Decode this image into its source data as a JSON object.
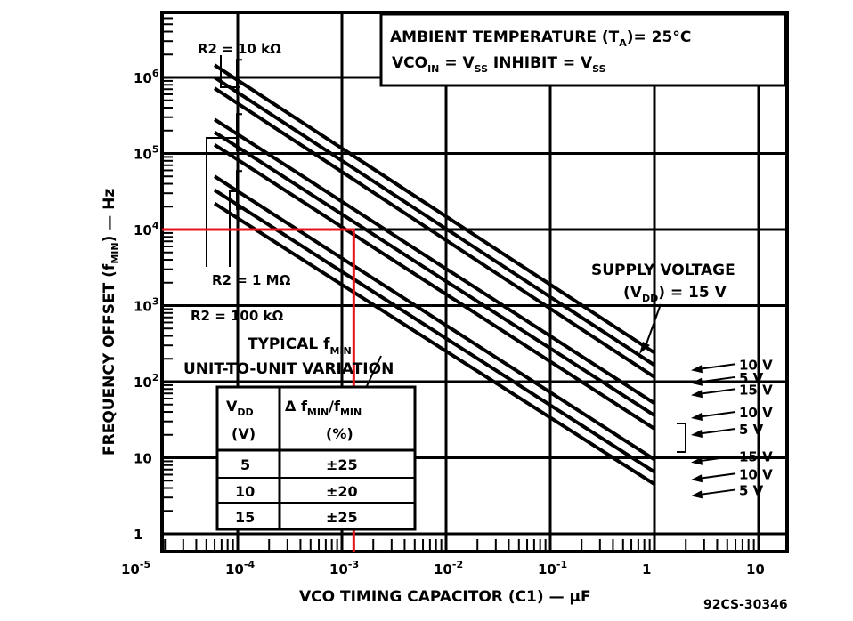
{
  "chart_data": {
    "type": "line",
    "xlabel": "VCO TIMING CAPACITOR (C1) — μF",
    "ylabel": "FREQUENCY OFFSET (f",
    "ylabel_sub": "MIN",
    "ylabel_tail": ") — Hz",
    "xscale": "log",
    "yscale": "log",
    "xlim": [
      1e-05,
      10
    ],
    "ylim": [
      0.5,
      10000000
    ],
    "grid": true,
    "x_ticks": [
      {
        "base": "10",
        "exp": "-5",
        "value": 1e-05
      },
      {
        "base": "10",
        "exp": "-4",
        "value": 0.0001
      },
      {
        "base": "10",
        "exp": "-3",
        "value": 0.001
      },
      {
        "base": "10",
        "exp": "-2",
        "value": 0.01
      },
      {
        "base": "10",
        "exp": "-1",
        "value": 0.1
      },
      {
        "base": "1",
        "exp": "",
        "value": 1
      },
      {
        "base": "10",
        "exp": "",
        "value": 10
      }
    ],
    "y_ticks": [
      {
        "base": "1",
        "exp": "",
        "value": 1
      },
      {
        "base": "10",
        "exp": "",
        "value": 10
      },
      {
        "base": "10",
        "exp": "2",
        "value": 100
      },
      {
        "base": "10",
        "exp": "3",
        "value": 1000
      },
      {
        "base": "10",
        "exp": "4",
        "value": 10000
      },
      {
        "base": "10",
        "exp": "5",
        "value": 100000
      },
      {
        "base": "10",
        "exp": "6",
        "value": 1000000
      }
    ],
    "header_line1": "AMBIENT TEMPERATURE (T",
    "header_line1_sub": "A",
    "header_line1_tail": ")= 25°C",
    "header_line2_a": "VCO",
    "header_line2_a_sub": "IN",
    "header_line2_b": " = V",
    "header_line2_b_sub": "SS",
    "header_line2_c": "  INHIBIT = V",
    "header_line2_c_sub": "SS",
    "r_labels": [
      "R2 = 10 kΩ",
      "R2 = 1 MΩ",
      "R2 = 100 kΩ"
    ],
    "supply_line1": "SUPPLY VOLTAGE",
    "supply_line2_a": "(V",
    "supply_line2_sub": "DD",
    "supply_line2_b": ") = 15 V",
    "typical_a": "TYPICAL f",
    "typical_sub": "MIN",
    "typical_line2": "UNIT-TO-UNIT VARIATION",
    "table": {
      "header_col1_a": "V",
      "header_col1_sub": "DD",
      "header_col1_unit": "(V)",
      "header_col2_a": "Δ f",
      "header_col2_sub1": "MIN",
      "header_col2_b": "/f",
      "header_col2_sub2": "MIN",
      "header_col2_unit": "(%)",
      "rows": [
        {
          "vdd": "5",
          "variation": "±25"
        },
        {
          "vdd": "10",
          "variation": "±20"
        },
        {
          "vdd": "15",
          "variation": "±25"
        }
      ]
    },
    "figure_id": "92CS-30346",
    "series": [
      {
        "name": "15 V",
        "group": "R2 = 10 kΩ",
        "x": [
          6e-05,
          1
        ],
        "y": [
          1450000,
          240
        ]
      },
      {
        "name": "10 V",
        "group": "R2 = 10 kΩ",
        "x": [
          6e-05,
          1
        ],
        "y": [
          1000000,
          165
        ]
      },
      {
        "name": "5 V",
        "group": "R2 = 10 kΩ",
        "x": [
          6e-05,
          1
        ],
        "y": [
          720000,
          115
        ]
      },
      {
        "name": "15 V",
        "group": "R2 = 100 kΩ",
        "x": [
          6e-05,
          1
        ],
        "y": [
          280000,
          52
        ]
      },
      {
        "name": "10 V",
        "group": "R2 = 100 kΩ",
        "x": [
          6e-05,
          1
        ],
        "y": [
          190000,
          36
        ]
      },
      {
        "name": "5 V",
        "group": "R2 = 100 kΩ",
        "x": [
          6e-05,
          1
        ],
        "y": [
          130000,
          24
        ]
      },
      {
        "name": "15 V",
        "group": "R2 = 1 MΩ",
        "x": [
          6e-05,
          1
        ],
        "y": [
          50000,
          9.5
        ]
      },
      {
        "name": "10 V",
        "group": "R2 = 1 MΩ",
        "x": [
          6e-05,
          1
        ],
        "y": [
          33000,
          6.5
        ]
      },
      {
        "name": "5 V",
        "group": "R2 = 1 MΩ",
        "x": [
          6e-05,
          1
        ],
        "y": [
          22000,
          4.5
        ]
      }
    ],
    "end_labels": [
      {
        "text": "10 V",
        "y": 170
      },
      {
        "text": "5 V",
        "y": 115
      },
      {
        "text": "15 V",
        "y": 80
      },
      {
        "text": "10 V",
        "y": 40
      },
      {
        "text": "5 V",
        "y": 24
      },
      {
        "text": "15 V",
        "y": 10.5
      },
      {
        "text": "10 V",
        "y": 6.2
      },
      {
        "text": "5 V",
        "y": 3.8
      }
    ],
    "highlight": {
      "color": "#e8141c",
      "x": 0.0013,
      "y": 10000
    }
  }
}
